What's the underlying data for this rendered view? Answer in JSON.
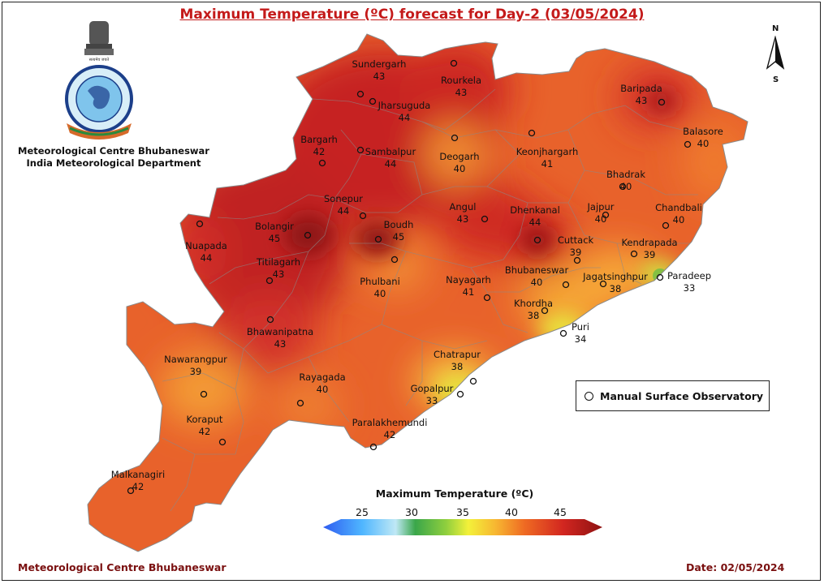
{
  "title": "Maximum Temperature (ºC) forecast for Day-2 (03/05/2024)",
  "org": {
    "line1": "Meteorological Centre Bhubaneswar",
    "line2": "India Meteorological Department",
    "logo_text_top": "भारत मौसम विज्ञान विभाग",
    "logo_text_bottom": "INDIA METEOROLOGICAL DEPARTMENT",
    "logo_motto": "सत्यमेव जयते"
  },
  "compass": {
    "north": "N",
    "south": "S"
  },
  "legend": {
    "label": "Manual Surface Observatory"
  },
  "colorbar": {
    "title": "Maximum Temperature (ºC)",
    "ticks": [
      "25",
      "30",
      "35",
      "40",
      "45"
    ],
    "colors": [
      "#2f5cf0",
      "#4fb6ff",
      "#bfe8f5",
      "#3aa64a",
      "#8fcf3e",
      "#f3f13a",
      "#f7b531",
      "#ef6b23",
      "#d22620",
      "#8e1212"
    ]
  },
  "footer": {
    "left": "Meteorological Centre Bhubaneswar",
    "right": "Date: 02/05/2024"
  },
  "stations": [
    {
      "name": "Sundergarh",
      "value": "43"
    },
    {
      "name": "Rourkela",
      "value": "43"
    },
    {
      "name": "Baripada",
      "value": "43"
    },
    {
      "name": "Jharsuguda",
      "value": "44"
    },
    {
      "name": "Balasore",
      "value": "40"
    },
    {
      "name": "Bargarh",
      "value": "42"
    },
    {
      "name": "Sambalpur",
      "value": "44"
    },
    {
      "name": "Deogarh",
      "value": "40"
    },
    {
      "name": "Keonjhargarh",
      "value": "41"
    },
    {
      "name": "Bhadrak",
      "value": "40"
    },
    {
      "name": "Sonepur",
      "value": "44"
    },
    {
      "name": "Angul",
      "value": "43"
    },
    {
      "name": "Dhenkanal",
      "value": "44"
    },
    {
      "name": "Jajpur",
      "value": "40"
    },
    {
      "name": "Chandbali",
      "value": "40"
    },
    {
      "name": "Bolangir",
      "value": "45"
    },
    {
      "name": "Boudh",
      "value": "45"
    },
    {
      "name": "Nuapada",
      "value": "44"
    },
    {
      "name": "Cuttack",
      "value": "39"
    },
    {
      "name": "Kendrapada",
      "value": "39"
    },
    {
      "name": "Titilagarh",
      "value": "43"
    },
    {
      "name": "Paradeep",
      "value": "33"
    },
    {
      "name": "Phulbani",
      "value": "40"
    },
    {
      "name": "Nayagarh",
      "value": "41"
    },
    {
      "name": "Bhubaneswar",
      "value": "40"
    },
    {
      "name": "Jagatsinghpur",
      "value": "38"
    },
    {
      "name": "Khordha",
      "value": "38"
    },
    {
      "name": "Bhawanipatna",
      "value": "43"
    },
    {
      "name": "Puri",
      "value": "34"
    },
    {
      "name": "Nawarangpur",
      "value": "39"
    },
    {
      "name": "Chatrapur",
      "value": "38"
    },
    {
      "name": "Rayagada",
      "value": "40"
    },
    {
      "name": "Gopalpur",
      "value": "33"
    },
    {
      "name": "Koraput",
      "value": "42"
    },
    {
      "name": "Paralakhemundi",
      "value": "42"
    },
    {
      "name": "Malkanagiri",
      "value": "42"
    }
  ]
}
